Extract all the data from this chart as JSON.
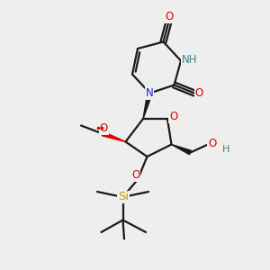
{
  "background_color": "#eeeeee",
  "bond_color": "#1a1a1a",
  "atom_colors": {
    "O": "#e00000",
    "N": "#2020e0",
    "H_on_N": "#408080",
    "Si": "#c8a000",
    "C": "#1a1a1a"
  },
  "lw": 1.6,
  "fs": 8.5
}
